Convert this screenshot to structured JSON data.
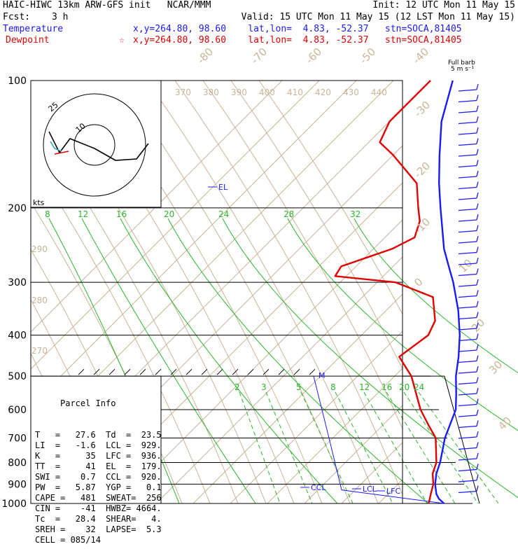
{
  "header": {
    "model": "HAIC-HIWC 13km ARW-GFS init   NCAR/MMM",
    "init": "Init: 12 UTC Mon 11 May 15",
    "fcst_label": "Fcst:",
    "fcst_value": "3 h",
    "valid": "Valid: 15 UTC Mon 11 May 15 (12 LST Mon 11 May 15)",
    "temperature_label": "Temperature",
    "temperature_info": "x,y=264.80, 98.60    lat,lon=  4.83, -52.37   stn=SOCA,81405",
    "dewpoint_label": "Dewpoint",
    "dewpoint_info": "x,y=264.80, 98.60    lat,lon=  4.83, -52.37   stn=SOCA,81405",
    "dewpoint_marker": "☆"
  },
  "barb_header": {
    "line1": "Full barb",
    "line2": "5 m s⁻¹"
  },
  "colors": {
    "temperature": "#1a1aff",
    "dewpoint": "#e00000",
    "isotherm_tick": "#c9b497",
    "mixing_ratio": "#2bb52b",
    "isobar": "#000000"
  },
  "parcel_info": {
    "title": "Parcel Info",
    "rows": [
      "T   =   27.6  Td  =  23.5",
      "LI  =   -1.6  LCL =  929.",
      "K   =     35  LFC =  936.",
      "TT  =     41  EL  =  179.",
      "SWI =    0.7  CCL =  920.",
      "PW  =   5.87  YGP =   0.1",
      "CAPE =   481  SWEAT=  256",
      "CIN =    -41  HWBZ= 4664.",
      "Tc  =   28.4  SHEAR=   4.",
      "SREH =    32  LAPSE=  5.3",
      "CELL = 085/14"
    ]
  },
  "hodograph": {
    "ring_labels": [
      "25",
      "10"
    ],
    "axis_label": "kts"
  },
  "chart_data": {
    "type": "line",
    "subtype": "skew-T log-P sounding",
    "y_axis": {
      "label": "",
      "unit": "hPa",
      "scale": "log",
      "ticks": [
        100,
        200,
        300,
        400,
        500,
        600,
        700,
        800,
        900,
        1000
      ]
    },
    "isotherm_labels": [
      "40",
      "30",
      "20",
      "10",
      "0",
      "-10",
      "-20",
      "-30",
      "-40",
      "-50",
      "-60",
      "-70",
      "-80"
    ],
    "mixing_ratio_labels_upper": [
      "8",
      "12",
      "16",
      "20",
      "24",
      "28",
      "32"
    ],
    "mixing_ratio_labels_lower": [
      "2",
      "3",
      "5",
      "8",
      "12",
      "16",
      "20",
      "24"
    ],
    "theta_labels": [
      "370",
      "380",
      "390",
      "400",
      "410",
      "420",
      "430",
      "440"
    ],
    "theta_labels_left": [
      "290",
      "280",
      "270"
    ],
    "series": [
      {
        "name": "Temperature",
        "points": [
          [
            1000,
            27.6
          ],
          [
            975,
            25.0
          ],
          [
            950,
            23.0
          ],
          [
            900,
            20.0
          ],
          [
            850,
            17.5
          ],
          [
            800,
            15.5
          ],
          [
            700,
            10.2
          ],
          [
            600,
            5.5
          ],
          [
            550,
            1.3
          ],
          [
            500,
            -3.5
          ],
          [
            450,
            -8.0
          ],
          [
            400,
            -13.5
          ],
          [
            350,
            -20.5
          ],
          [
            300,
            -29.5
          ],
          [
            275,
            -35.0
          ],
          [
            250,
            -41.0
          ],
          [
            200,
            -53.0
          ],
          [
            175,
            -60.0
          ],
          [
            150,
            -67.5
          ],
          [
            125,
            -76.0
          ],
          [
            100,
            -84.0
          ]
        ]
      },
      {
        "name": "Dewpoint",
        "points": [
          [
            1000,
            23.5
          ],
          [
            950,
            21.5
          ],
          [
            900,
            19.5
          ],
          [
            850,
            16.5
          ],
          [
            800,
            14.5
          ],
          [
            700,
            7.7
          ],
          [
            650,
            2.0
          ],
          [
            600,
            -4.0
          ],
          [
            550,
            -9.5
          ],
          [
            500,
            -15.5
          ],
          [
            450,
            -24.0
          ],
          [
            400,
            -22.0
          ],
          [
            370,
            -24.0
          ],
          [
            350,
            -27.0
          ],
          [
            325,
            -31.0
          ],
          [
            300,
            -45.0
          ],
          [
            290,
            -63.0
          ],
          [
            275,
            -64.0
          ],
          [
            250,
            -55.0
          ],
          [
            235,
            -52.0
          ],
          [
            215,
            -55.0
          ],
          [
            200,
            -59.0
          ],
          [
            175,
            -66.0
          ],
          [
            150,
            -80.0
          ],
          [
            140,
            -87.0
          ],
          [
            125,
            -90.0
          ],
          [
            100,
            -90.0
          ]
        ]
      }
    ],
    "annotations": [
      "EL",
      "M",
      "CCL",
      "LCL",
      "LFC"
    ]
  }
}
